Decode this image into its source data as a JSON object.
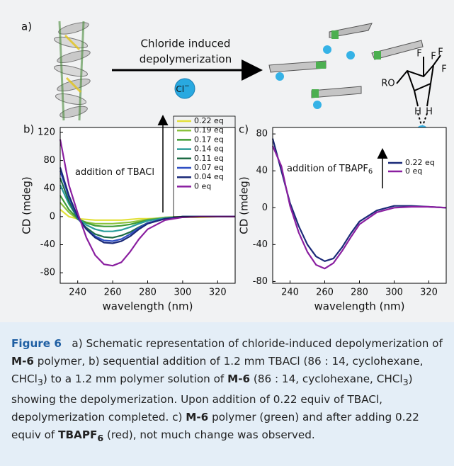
{
  "panel_a": {
    "label": "a)",
    "arrow_text": [
      "Chloride induced",
      "depolymerization"
    ],
    "ion": "Cl",
    "ion_charge": "−",
    "molecule_labels": [
      "RO",
      "F",
      "F",
      "F",
      "F",
      "H",
      "H"
    ]
  },
  "chart_data": [
    {
      "type": "line",
      "panel_label": "b)",
      "xlabel": "wavelength (nm)",
      "ylabel": "CD (mdeg)",
      "annotation": [
        "addition of TBACl"
      ],
      "x": [
        230,
        235,
        240,
        245,
        250,
        255,
        260,
        265,
        270,
        275,
        280,
        290,
        300,
        310,
        320,
        330
      ],
      "xlim": [
        230,
        330
      ],
      "xticks": [
        240,
        260,
        280,
        300,
        320
      ],
      "ylim": [
        -95,
        127
      ],
      "yticks": [
        120,
        80,
        40,
        0,
        -40,
        -80
      ],
      "series": [
        {
          "name": "0.22 eq",
          "color": "#e3e03a",
          "values": [
            10,
            0,
            -3,
            -4,
            -5,
            -5,
            -5,
            -5,
            -4,
            -3,
            -3,
            -2,
            -1,
            -1,
            0,
            0
          ]
        },
        {
          "name": "0.19 eq",
          "color": "#8ac23c",
          "values": [
            20,
            6,
            -4,
            -8,
            -10,
            -10,
            -10,
            -9,
            -8,
            -6,
            -4,
            -1,
            0,
            0,
            0,
            0
          ]
        },
        {
          "name": "0.17 eq",
          "color": "#3f9c35",
          "values": [
            30,
            10,
            -3,
            -9,
            -13,
            -14,
            -14,
            -13,
            -11,
            -8,
            -5,
            -2,
            0,
            0,
            0,
            0
          ]
        },
        {
          "name": "0.14 eq",
          "color": "#2a9d9a",
          "values": [
            45,
            18,
            -2,
            -12,
            -18,
            -21,
            -21,
            -19,
            -15,
            -10,
            -6,
            -2,
            0,
            0,
            0,
            0
          ]
        },
        {
          "name": "0.11 eq",
          "color": "#1d6b45",
          "values": [
            55,
            22,
            -3,
            -16,
            -25,
            -29,
            -30,
            -27,
            -22,
            -15,
            -9,
            -3,
            -1,
            0,
            0,
            0
          ]
        },
        {
          "name": "0.07 eq",
          "color": "#2f4fc4",
          "values": [
            65,
            28,
            -2,
            -18,
            -28,
            -34,
            -35,
            -32,
            -25,
            -16,
            -9,
            -3,
            0,
            0,
            0,
            0
          ]
        },
        {
          "name": "0.04 eq",
          "color": "#1b2a78",
          "values": [
            70,
            30,
            0,
            -18,
            -30,
            -37,
            -38,
            -35,
            -28,
            -18,
            -10,
            -3,
            0,
            0,
            0,
            0
          ]
        },
        {
          "name": "0 eq",
          "color": "#8a1fa0",
          "values": [
            110,
            45,
            5,
            -30,
            -55,
            -68,
            -70,
            -65,
            -50,
            -32,
            -18,
            -5,
            -1,
            0,
            0,
            0
          ]
        }
      ]
    },
    {
      "type": "line",
      "panel_label": "c)",
      "xlabel": "wavelength (nm)",
      "ylabel": "CD (mdeg)",
      "annotation": [
        "addition of TBAPF",
        "6"
      ],
      "x": [
        230,
        235,
        240,
        245,
        250,
        255,
        260,
        265,
        270,
        275,
        280,
        290,
        300,
        310,
        320,
        330
      ],
      "xlim": [
        230,
        330
      ],
      "xticks": [
        240,
        260,
        280,
        300,
        320
      ],
      "ylim": [
        -82,
        87
      ],
      "yticks": [
        80,
        40,
        0,
        -40,
        -80
      ],
      "series": [
        {
          "name": "0.22 eq",
          "color": "#1b2a78",
          "values": [
            75,
            40,
            5,
            -20,
            -40,
            -53,
            -58,
            -55,
            -43,
            -28,
            -15,
            -3,
            2,
            2,
            1,
            0
          ]
        },
        {
          "name": "0 eq",
          "color": "#8a1fa0",
          "values": [
            67,
            45,
            2,
            -27,
            -48,
            -62,
            -66,
            -60,
            -47,
            -32,
            -18,
            -5,
            0,
            1,
            1,
            0
          ]
        }
      ]
    }
  ],
  "caption": {
    "label": "Figure 6",
    "segments": [
      "a) Schematic representation of chloride-induced depolymerization of ",
      "M-6",
      " polymer, b) sequential addition of 1.2 mm TBACl (86 : 14, cyclohexane, CHCl",
      "3",
      ") to a 1.2 mm polymer solution of ",
      "M-6",
      " (86 : 14, cyclohexane, CHCl",
      "3",
      ") showing the depolymerization. Upon addition of 0.22 equiv of TBACl, depolymerization completed. c) ",
      "M-6",
      " polymer (green) and after adding 0.22 equiv of ",
      "TBAPF",
      "6",
      " (red), not much change was observed."
    ]
  }
}
